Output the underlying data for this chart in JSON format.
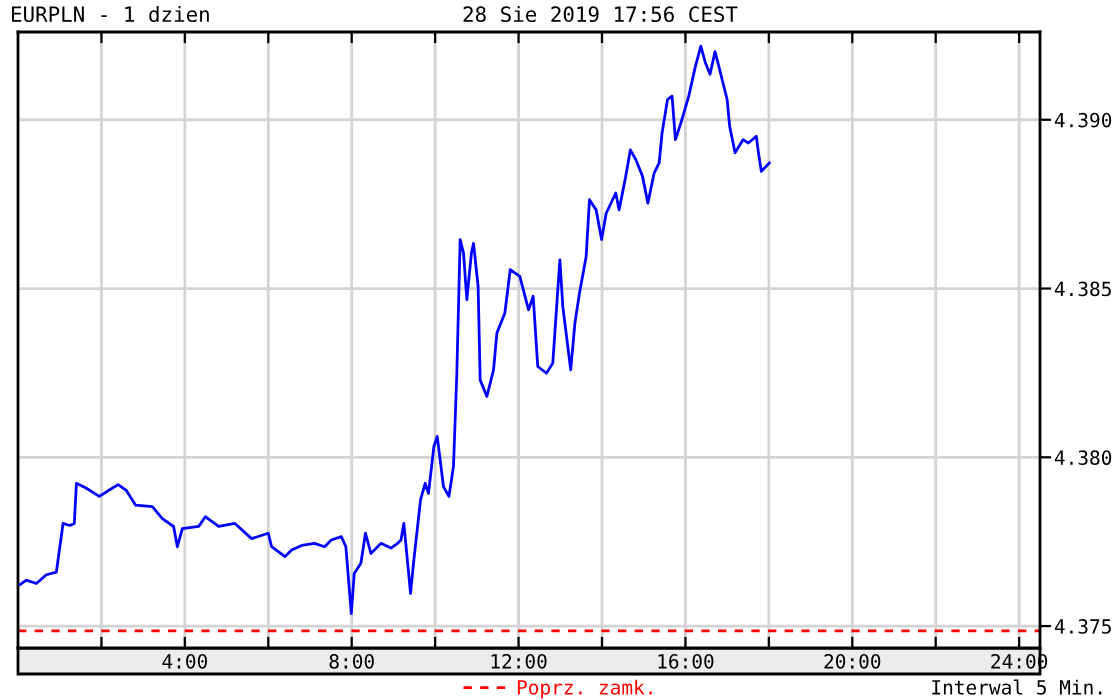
{
  "chart_data": {
    "type": "line",
    "title": "EURPLN - 1 dzien",
    "subtitle": "28 Sie 2019 17:56 CEST",
    "annotations": [
      "Interwal 5 Min."
    ],
    "x": [
      0.05,
      0.2,
      0.44,
      0.68,
      0.92,
      1.08,
      1.24,
      1.35,
      1.4,
      1.63,
      1.95,
      2.19,
      2.4,
      2.59,
      2.82,
      3.22,
      3.46,
      3.73,
      3.82,
      3.94,
      4.33,
      4.49,
      4.81,
      5.2,
      5.6,
      6.0,
      6.08,
      6.4,
      6.56,
      6.8,
      7.11,
      7.35,
      7.51,
      7.75,
      7.86,
      7.99,
      8.06,
      8.22,
      8.33,
      8.46,
      8.7,
      8.94,
      9.1,
      9.18,
      9.25,
      9.41,
      9.49,
      9.65,
      9.76,
      9.84,
      9.97,
      10.05,
      10.2,
      10.33,
      10.44,
      10.52,
      10.6,
      10.68,
      10.76,
      10.87,
      10.92,
      11.03,
      11.08,
      11.24,
      11.4,
      11.48,
      11.67,
      11.8,
      12.03,
      12.24,
      12.35,
      12.46,
      12.67,
      12.82,
      12.99,
      13.06,
      13.19,
      13.25,
      13.35,
      13.46,
      13.62,
      13.7,
      13.86,
      13.99,
      14.1,
      14.33,
      14.41,
      14.57,
      14.68,
      14.81,
      14.97,
      15.1,
      15.25,
      15.37,
      15.44,
      15.57,
      15.68,
      15.76,
      15.89,
      16.08,
      16.24,
      16.37,
      16.48,
      16.59,
      16.71,
      16.84,
      17.0,
      17.06,
      17.19,
      17.38,
      17.51,
      17.7,
      17.75,
      17.82,
      18.01
    ],
    "series": [
      {
        "color": "#0000ff",
        "values": [
          4.37623,
          4.37636,
          4.37626,
          4.37652,
          4.3766,
          4.37804,
          4.37798,
          4.37804,
          4.37923,
          4.37909,
          4.37884,
          4.37903,
          4.37919,
          4.37903,
          4.37858,
          4.37854,
          4.37818,
          4.37795,
          4.37735,
          4.37789,
          4.37795,
          4.37824,
          4.37795,
          4.37804,
          4.37759,
          4.37775,
          4.37735,
          4.37706,
          4.37725,
          4.37739,
          4.37745,
          4.37735,
          4.37755,
          4.37765,
          4.37735,
          4.37537,
          4.37656,
          4.37686,
          4.37775,
          4.37715,
          4.37745,
          4.37731,
          4.37745,
          4.37755,
          4.37804,
          4.37597,
          4.37696,
          4.37874,
          4.37923,
          4.37893,
          4.38032,
          4.38062,
          4.37913,
          4.37884,
          4.37973,
          4.38249,
          4.38645,
          4.38605,
          4.38467,
          4.38605,
          4.38634,
          4.38506,
          4.38229,
          4.3818,
          4.38259,
          4.38368,
          4.38427,
          4.38556,
          4.38536,
          4.38437,
          4.38477,
          4.38269,
          4.38249,
          4.38279,
          4.38585,
          4.38447,
          4.38318,
          4.38259,
          4.38397,
          4.38486,
          4.38595,
          4.38763,
          4.38733,
          4.38645,
          4.38723,
          4.38783,
          4.38733,
          4.38833,
          4.38911,
          4.38882,
          4.38833,
          4.38753,
          4.38842,
          4.38872,
          4.38961,
          4.3906,
          4.3907,
          4.38941,
          4.3899,
          4.3907,
          4.39159,
          4.39218,
          4.39168,
          4.39135,
          4.39202,
          4.39139,
          4.3906,
          4.38981,
          4.38902,
          4.38941,
          4.38931,
          4.38951,
          4.38902,
          4.38847,
          4.38872
        ]
      }
    ],
    "xlim": [
      0,
      24.5
    ],
    "xticks": [
      {
        "value": 2,
        "label": null
      },
      {
        "value": 4,
        "label": "4:00"
      },
      {
        "value": 6,
        "label": null
      },
      {
        "value": 8,
        "label": "8:00"
      },
      {
        "value": 10,
        "label": null
      },
      {
        "value": 12,
        "label": "12:00"
      },
      {
        "value": 14,
        "label": null
      },
      {
        "value": 16,
        "label": "16:00"
      },
      {
        "value": 18,
        "label": null
      },
      {
        "value": 20,
        "label": "20:00"
      },
      {
        "value": 22,
        "label": null
      },
      {
        "value": 24,
        "label": "24:00"
      }
    ],
    "ylim": [
      4.37435,
      4.3926
    ],
    "yticks": [
      {
        "value": 4.375,
        "label": "4.375"
      },
      {
        "value": 4.38,
        "label": "4.380"
      },
      {
        "value": 4.385,
        "label": "4.385"
      },
      {
        "value": 4.39,
        "label": "4.390"
      }
    ],
    "ref_lines": [
      {
        "axis": "y",
        "value": 4.37486,
        "label": "Poprz. zamk.",
        "color": "#ff0000",
        "line_style": "dashed"
      }
    ],
    "grid": true,
    "legend": "bottom",
    "marker": "none",
    "line_style": "solid"
  }
}
